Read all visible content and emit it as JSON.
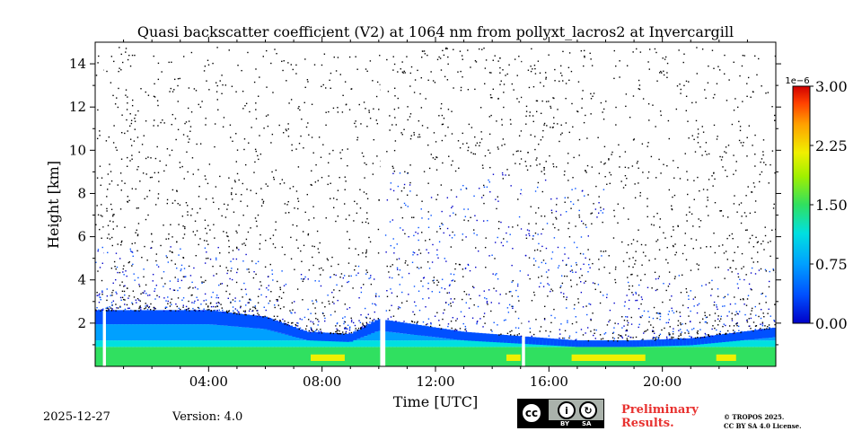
{
  "chart_data": {
    "type": "heatmap",
    "title": "Quasi backscatter coefficient (V2) at 1064 nm from pollyxt_lacros2 at Invercargill",
    "xlabel": "Time [UTC]",
    "ylabel": "Height [km]",
    "xlim_hours": [
      0,
      24
    ],
    "ylim_km": [
      0,
      15
    ],
    "x_ticks": [
      {
        "value": 4,
        "label": "04:00"
      },
      {
        "value": 8,
        "label": "08:00"
      },
      {
        "value": 12,
        "label": "12:00"
      },
      {
        "value": 16,
        "label": "16:00"
      },
      {
        "value": 20,
        "label": "20:00"
      }
    ],
    "y_ticks": [
      {
        "value": 2,
        "label": "2"
      },
      {
        "value": 4,
        "label": "4"
      },
      {
        "value": 6,
        "label": "6"
      },
      {
        "value": 8,
        "label": "8"
      },
      {
        "value": 10,
        "label": "10"
      },
      {
        "value": 12,
        "label": "12"
      },
      {
        "value": 14,
        "label": "14"
      }
    ],
    "colorbar": {
      "range": [
        0,
        3.0
      ],
      "exponent_label": "1e−6",
      "ticks": [
        {
          "value": 0.0,
          "label": "0.00"
        },
        {
          "value": 0.75,
          "label": "0.75"
        },
        {
          "value": 1.5,
          "label": "1.50"
        },
        {
          "value": 2.25,
          "label": "2.25"
        },
        {
          "value": 3.0,
          "label": "3.00"
        }
      ],
      "colormap": [
        "#0000c8",
        "#0050ff",
        "#00a0ff",
        "#00e0e0",
        "#30e060",
        "#a0f000",
        "#f0f000",
        "#ffa000",
        "#ff4000",
        "#d00000"
      ]
    },
    "data_gaps_hours": [
      [
        0.3,
        0.35
      ],
      [
        10.05,
        10.2
      ],
      [
        15.05,
        15.15
      ]
    ],
    "boundary_layer_top_km_by_hour": [
      [
        0,
        2.6
      ],
      [
        2,
        2.6
      ],
      [
        4,
        2.6
      ],
      [
        6,
        2.3
      ],
      [
        7.5,
        1.6
      ],
      [
        9,
        1.5
      ],
      [
        10,
        2.2
      ],
      [
        11,
        2.0
      ],
      [
        13,
        1.6
      ],
      [
        15,
        1.4
      ],
      [
        17,
        1.2
      ],
      [
        19,
        1.2
      ],
      [
        21,
        1.3
      ],
      [
        24,
        1.8
      ]
    ]
  },
  "footer": {
    "date": "2025-12-27",
    "version": "Version: 4.0",
    "preliminary_line1": "Preliminary",
    "preliminary_line2": "Results.",
    "copyright_line1": "© TROPOS 2025.",
    "copyright_line2": "CC BY SA 4.0 License.",
    "license_badge": {
      "cc": "cc",
      "by": "BY",
      "sa": "SA"
    }
  }
}
